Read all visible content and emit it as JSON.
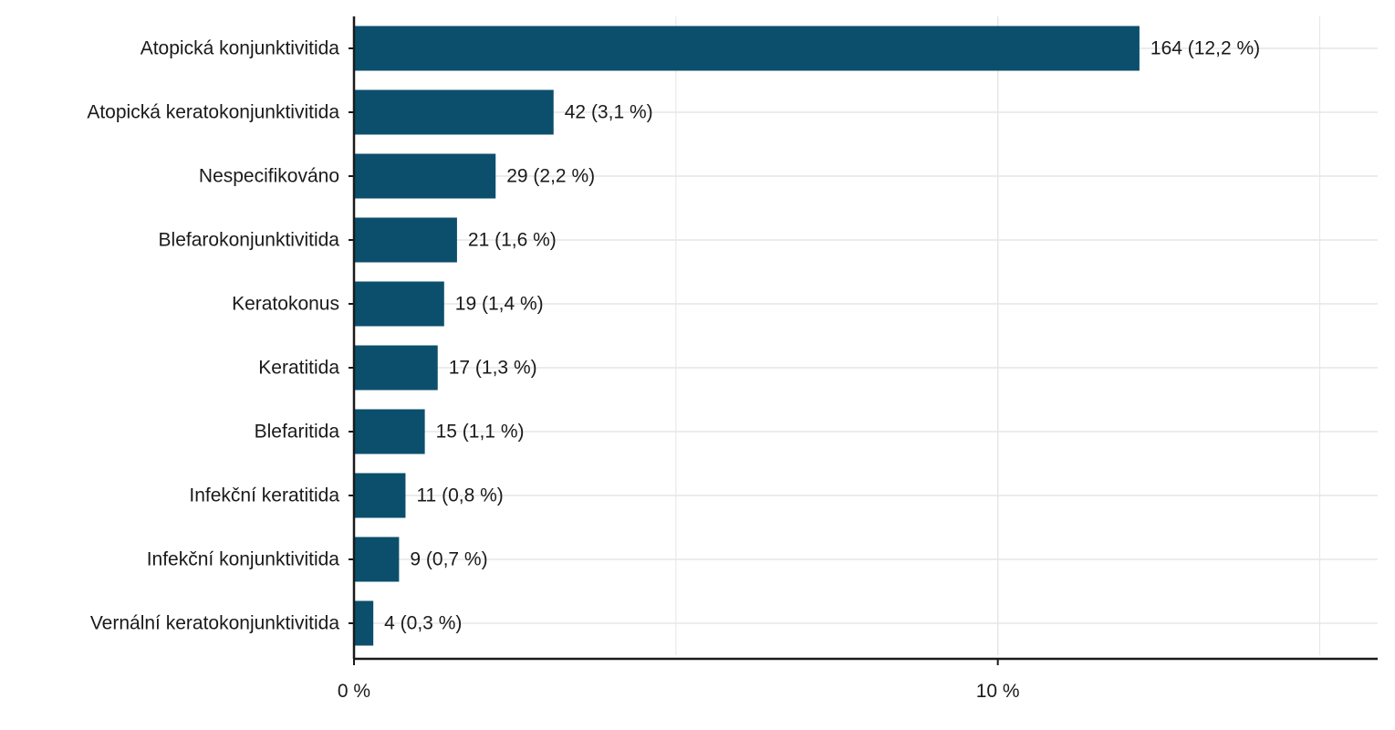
{
  "chart_data": {
    "type": "bar",
    "orientation": "horizontal",
    "title": "",
    "xlabel": "",
    "ylabel": "",
    "categories": [
      "Atopická konjunktivitida",
      "Atopická keratokonjunktivitida",
      "Nespecifikováno",
      "Blefarokonjunktivitida",
      "Keratokonus",
      "Keratitida",
      "Blefaritida",
      "Infekční keratitida",
      "Infekční konjunktivitida",
      "Vernální keratokonjunktivitida"
    ],
    "values": [
      12.2,
      3.1,
      2.2,
      1.6,
      1.4,
      1.3,
      1.1,
      0.8,
      0.7,
      0.3
    ],
    "data_labels": [
      "164 (12,2 %)",
      "42 (3,1 %)",
      "29 (2,2 %)",
      "21 (1,6 %)",
      "19 (1,4 %)",
      "17 (1,3 %)",
      "15 (1,1 %)",
      "11 (0,8 %)",
      "9 (0,7 %)",
      "4 (0,3 %)"
    ],
    "xlim": [
      0,
      15.9
    ],
    "x_ticks": [
      0,
      10
    ],
    "x_tick_labels": [
      "0 %",
      "10 %"
    ],
    "x_minor_gridlines": [
      5,
      15
    ],
    "grid": true,
    "legend": "none",
    "colors": {
      "bar": "#0b4f6c",
      "grid": "#e6e6e6",
      "axis": "#1a1a1a"
    }
  }
}
